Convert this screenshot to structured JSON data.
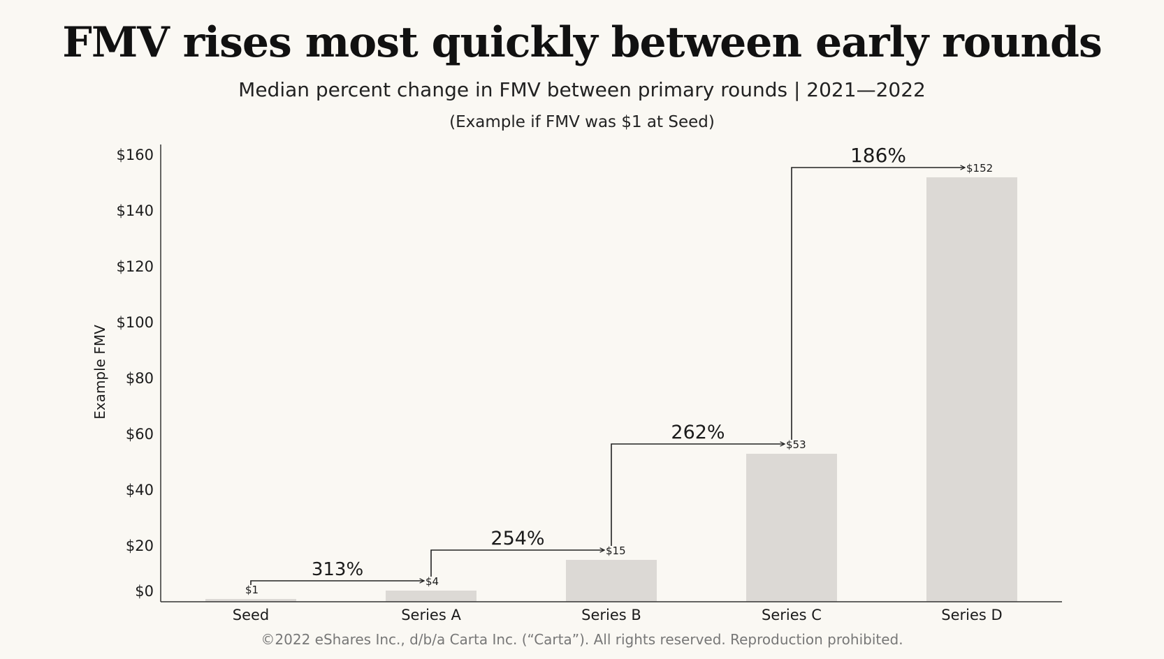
{
  "title": "FMV rises most quickly between early rounds",
  "subtitle": "Median percent change in FMV between primary rounds |  2021—2022",
  "note": "(Example if FMV was $1 at Seed)",
  "footer": "©2022 eShares Inc., d/b/a Carta Inc. (“Carta”). All rights reserved. Reproduction prohibited.",
  "colors": {
    "background": "#faf8f3",
    "bar": "#dcd9d5",
    "axis": "#333333",
    "text": "#1a1a1a"
  },
  "chart_data": {
    "type": "bar",
    "ylabel": "Example FMV",
    "categories": [
      "Seed",
      "Series A",
      "Series B",
      "Series C",
      "Series D"
    ],
    "values": [
      1,
      4,
      15,
      53,
      152
    ],
    "value_labels": [
      "$1",
      "$4",
      "$15",
      "$53",
      "$152"
    ],
    "ylim": [
      0,
      160
    ],
    "yticks": [
      0,
      20,
      40,
      60,
      80,
      100,
      120,
      140,
      160
    ],
    "ytick_labels": [
      "$0",
      "$20",
      "$40",
      "$60",
      "$80",
      "$100",
      "$120",
      "$140",
      "$160"
    ],
    "grid": false,
    "changes": [
      {
        "from": "Seed",
        "to": "Series A",
        "label": "313%"
      },
      {
        "from": "Series A",
        "to": "Series B",
        "label": "254%"
      },
      {
        "from": "Series B",
        "to": "Series C",
        "label": "262%"
      },
      {
        "from": "Series C",
        "to": "Series D",
        "label": "186%"
      }
    ]
  }
}
